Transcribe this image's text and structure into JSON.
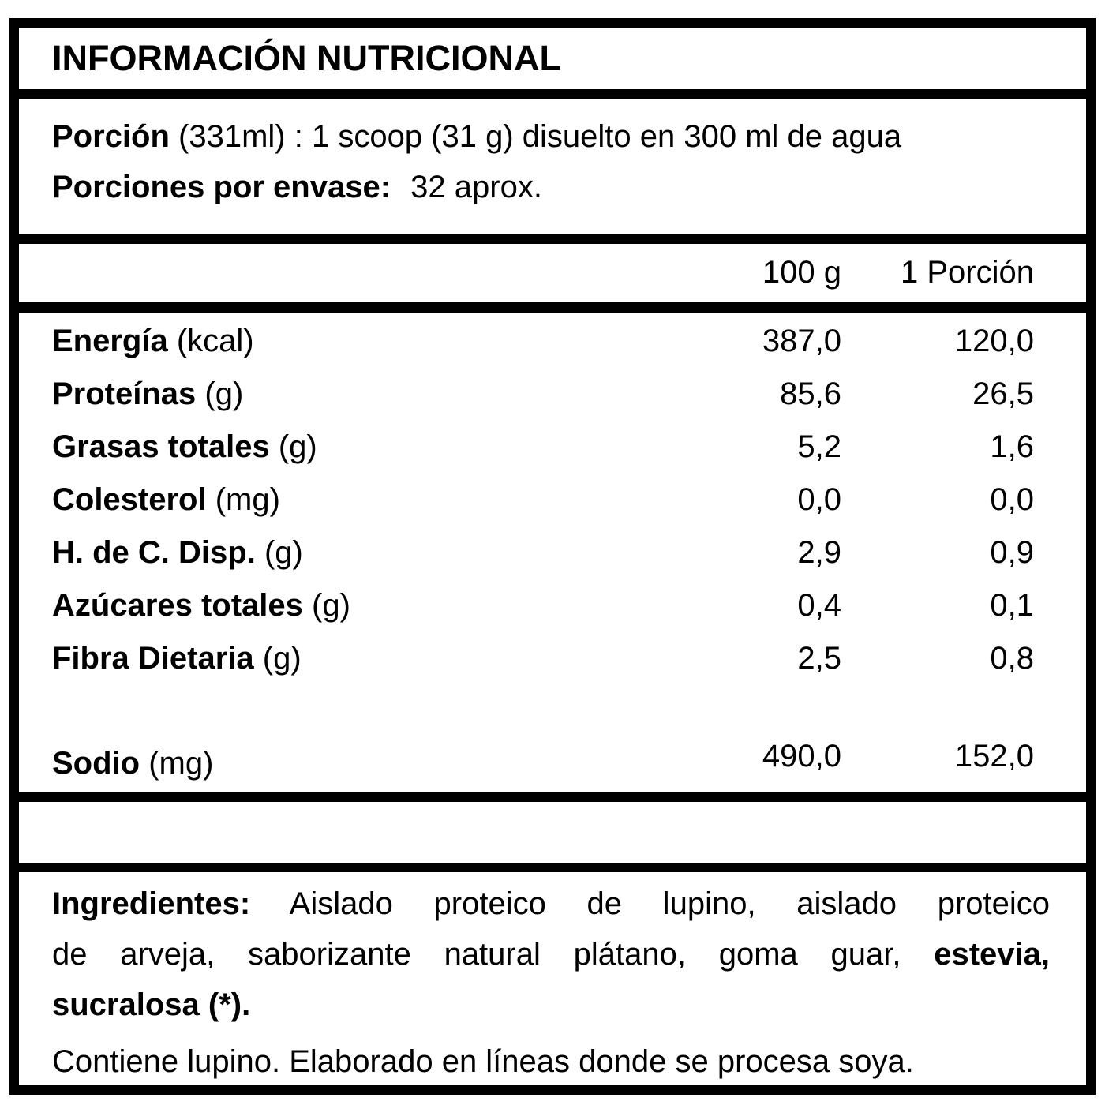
{
  "label": {
    "title": "INFORMACIÓN NUTRICIONAL",
    "serving": {
      "line1_bold": "Porción",
      "line1_rest": "(331ml) : 1 scoop (31 g) disuelto en 300 ml de agua",
      "line2_bold": "Porciones por envase:",
      "line2_rest": "32 aprox."
    },
    "columns": {
      "per_100": "100 g",
      "per_serving": "1 Porción"
    },
    "rows": [
      {
        "name": "Energía",
        "unit": "(kcal)",
        "per100": "387,0",
        "perServing": "120,0"
      },
      {
        "name": "Proteínas",
        "unit": "(g)",
        "per100": "85,6",
        "perServing": "26,5"
      },
      {
        "name": "Grasas totales",
        "unit": "(g)",
        "per100": "5,2",
        "perServing": "1,6"
      },
      {
        "name": "Colesterol",
        "unit": "(mg)",
        "per100": "0,0",
        "perServing": "0,0"
      },
      {
        "name": "H. de C. Disp.",
        "unit": "(g)",
        "per100": "2,9",
        "perServing": "0,9"
      },
      {
        "name": "Azúcares totales",
        "unit": "(g)",
        "per100": "0,4",
        "perServing": "0,1"
      },
      {
        "name": "Fibra Dietaria",
        "unit": "(g)",
        "per100": "2,5",
        "perServing": "0,8"
      },
      {
        "name": "Sodio",
        "unit": "(mg)",
        "per100": "490,0",
        "perServing": "152,0"
      }
    ],
    "ingredients": {
      "heading": "Ingredientes:",
      "line1_rest": "Aislado proteico de lupino, aislado proteico",
      "line2_regular": "de arveja, saborizante natural plátano, goma guar,",
      "line2_bold": "estevia,",
      "line3_bold": "sucralosa (*)."
    },
    "allergen_note": "Contiene lupino. Elaborado en líneas donde se procesa soya."
  },
  "colors": {
    "text": "#000000",
    "background": "#ffffff",
    "border": "#000000"
  }
}
